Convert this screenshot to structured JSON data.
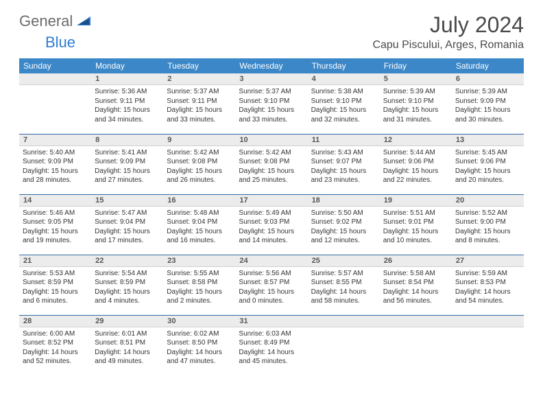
{
  "logo": {
    "text_gray": "General",
    "text_blue": "Blue"
  },
  "header": {
    "month_title": "July 2024",
    "location": "Capu Piscului, Arges, Romania"
  },
  "colors": {
    "header_bg": "#3b87c8",
    "header_text": "#ffffff",
    "daynum_bg": "#ececec",
    "row_divider": "#2f6aa3",
    "logo_gray": "#6b6b6b",
    "logo_blue": "#2e7cd1"
  },
  "weekdays": [
    "Sunday",
    "Monday",
    "Tuesday",
    "Wednesday",
    "Thursday",
    "Friday",
    "Saturday"
  ],
  "weeks": [
    [
      {
        "n": "",
        "sr": "",
        "ss": "",
        "dl": ""
      },
      {
        "n": "1",
        "sr": "Sunrise: 5:36 AM",
        "ss": "Sunset: 9:11 PM",
        "dl": "Daylight: 15 hours and 34 minutes."
      },
      {
        "n": "2",
        "sr": "Sunrise: 5:37 AM",
        "ss": "Sunset: 9:11 PM",
        "dl": "Daylight: 15 hours and 33 minutes."
      },
      {
        "n": "3",
        "sr": "Sunrise: 5:37 AM",
        "ss": "Sunset: 9:10 PM",
        "dl": "Daylight: 15 hours and 33 minutes."
      },
      {
        "n": "4",
        "sr": "Sunrise: 5:38 AM",
        "ss": "Sunset: 9:10 PM",
        "dl": "Daylight: 15 hours and 32 minutes."
      },
      {
        "n": "5",
        "sr": "Sunrise: 5:39 AM",
        "ss": "Sunset: 9:10 PM",
        "dl": "Daylight: 15 hours and 31 minutes."
      },
      {
        "n": "6",
        "sr": "Sunrise: 5:39 AM",
        "ss": "Sunset: 9:09 PM",
        "dl": "Daylight: 15 hours and 30 minutes."
      }
    ],
    [
      {
        "n": "7",
        "sr": "Sunrise: 5:40 AM",
        "ss": "Sunset: 9:09 PM",
        "dl": "Daylight: 15 hours and 28 minutes."
      },
      {
        "n": "8",
        "sr": "Sunrise: 5:41 AM",
        "ss": "Sunset: 9:09 PM",
        "dl": "Daylight: 15 hours and 27 minutes."
      },
      {
        "n": "9",
        "sr": "Sunrise: 5:42 AM",
        "ss": "Sunset: 9:08 PM",
        "dl": "Daylight: 15 hours and 26 minutes."
      },
      {
        "n": "10",
        "sr": "Sunrise: 5:42 AM",
        "ss": "Sunset: 9:08 PM",
        "dl": "Daylight: 15 hours and 25 minutes."
      },
      {
        "n": "11",
        "sr": "Sunrise: 5:43 AM",
        "ss": "Sunset: 9:07 PM",
        "dl": "Daylight: 15 hours and 23 minutes."
      },
      {
        "n": "12",
        "sr": "Sunrise: 5:44 AM",
        "ss": "Sunset: 9:06 PM",
        "dl": "Daylight: 15 hours and 22 minutes."
      },
      {
        "n": "13",
        "sr": "Sunrise: 5:45 AM",
        "ss": "Sunset: 9:06 PM",
        "dl": "Daylight: 15 hours and 20 minutes."
      }
    ],
    [
      {
        "n": "14",
        "sr": "Sunrise: 5:46 AM",
        "ss": "Sunset: 9:05 PM",
        "dl": "Daylight: 15 hours and 19 minutes."
      },
      {
        "n": "15",
        "sr": "Sunrise: 5:47 AM",
        "ss": "Sunset: 9:04 PM",
        "dl": "Daylight: 15 hours and 17 minutes."
      },
      {
        "n": "16",
        "sr": "Sunrise: 5:48 AM",
        "ss": "Sunset: 9:04 PM",
        "dl": "Daylight: 15 hours and 16 minutes."
      },
      {
        "n": "17",
        "sr": "Sunrise: 5:49 AM",
        "ss": "Sunset: 9:03 PM",
        "dl": "Daylight: 15 hours and 14 minutes."
      },
      {
        "n": "18",
        "sr": "Sunrise: 5:50 AM",
        "ss": "Sunset: 9:02 PM",
        "dl": "Daylight: 15 hours and 12 minutes."
      },
      {
        "n": "19",
        "sr": "Sunrise: 5:51 AM",
        "ss": "Sunset: 9:01 PM",
        "dl": "Daylight: 15 hours and 10 minutes."
      },
      {
        "n": "20",
        "sr": "Sunrise: 5:52 AM",
        "ss": "Sunset: 9:00 PM",
        "dl": "Daylight: 15 hours and 8 minutes."
      }
    ],
    [
      {
        "n": "21",
        "sr": "Sunrise: 5:53 AM",
        "ss": "Sunset: 8:59 PM",
        "dl": "Daylight: 15 hours and 6 minutes."
      },
      {
        "n": "22",
        "sr": "Sunrise: 5:54 AM",
        "ss": "Sunset: 8:59 PM",
        "dl": "Daylight: 15 hours and 4 minutes."
      },
      {
        "n": "23",
        "sr": "Sunrise: 5:55 AM",
        "ss": "Sunset: 8:58 PM",
        "dl": "Daylight: 15 hours and 2 minutes."
      },
      {
        "n": "24",
        "sr": "Sunrise: 5:56 AM",
        "ss": "Sunset: 8:57 PM",
        "dl": "Daylight: 15 hours and 0 minutes."
      },
      {
        "n": "25",
        "sr": "Sunrise: 5:57 AM",
        "ss": "Sunset: 8:55 PM",
        "dl": "Daylight: 14 hours and 58 minutes."
      },
      {
        "n": "26",
        "sr": "Sunrise: 5:58 AM",
        "ss": "Sunset: 8:54 PM",
        "dl": "Daylight: 14 hours and 56 minutes."
      },
      {
        "n": "27",
        "sr": "Sunrise: 5:59 AM",
        "ss": "Sunset: 8:53 PM",
        "dl": "Daylight: 14 hours and 54 minutes."
      }
    ],
    [
      {
        "n": "28",
        "sr": "Sunrise: 6:00 AM",
        "ss": "Sunset: 8:52 PM",
        "dl": "Daylight: 14 hours and 52 minutes."
      },
      {
        "n": "29",
        "sr": "Sunrise: 6:01 AM",
        "ss": "Sunset: 8:51 PM",
        "dl": "Daylight: 14 hours and 49 minutes."
      },
      {
        "n": "30",
        "sr": "Sunrise: 6:02 AM",
        "ss": "Sunset: 8:50 PM",
        "dl": "Daylight: 14 hours and 47 minutes."
      },
      {
        "n": "31",
        "sr": "Sunrise: 6:03 AM",
        "ss": "Sunset: 8:49 PM",
        "dl": "Daylight: 14 hours and 45 minutes."
      },
      {
        "n": "",
        "sr": "",
        "ss": "",
        "dl": ""
      },
      {
        "n": "",
        "sr": "",
        "ss": "",
        "dl": ""
      },
      {
        "n": "",
        "sr": "",
        "ss": "",
        "dl": ""
      }
    ]
  ]
}
